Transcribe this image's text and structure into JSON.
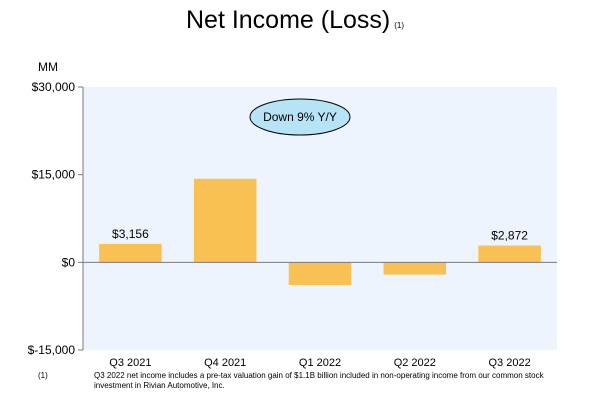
{
  "header": {
    "title": "Net Income (Loss)",
    "title_note": "(1)",
    "unit": "MM"
  },
  "chart_data": {
    "type": "bar",
    "categories": [
      "Q3 2021",
      "Q4 2021",
      "Q1 2022",
      "Q2 2022",
      "Q3 2022"
    ],
    "values": [
      3156,
      14300,
      -3900,
      -2100,
      2872
    ],
    "data_labels": [
      "$3,156",
      "",
      "",
      "",
      "$2,872"
    ],
    "y_ticks": [
      30000,
      15000,
      0,
      -15000
    ],
    "y_tick_labels": [
      "$30,000",
      "$15,000",
      "$0",
      "$-15,000"
    ],
    "ylim": [
      -15000,
      30000
    ],
    "grid": false,
    "annotation": "Down 9% Y/Y",
    "colors": {
      "bar": "#F9C154",
      "plot_background": "#EEF4FD",
      "callout_fill": "#B7E3F6",
      "axis": "#7a7a7a"
    }
  },
  "footnote": {
    "marker": "(1)",
    "text": "Q3 2022 net income includes a pre-tax valuation gain of $1.1B billion included in non-operating income from our common stock investment in Rivian Automotive, Inc."
  }
}
